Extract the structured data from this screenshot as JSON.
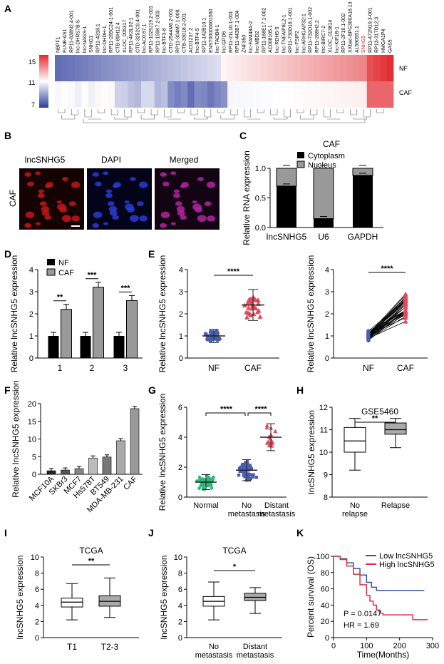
{
  "panels": {
    "A": "A",
    "B": "B",
    "C": "C",
    "D": "D",
    "E": "E",
    "F": "F",
    "G": "G",
    "H": "H",
    "I": "I",
    "J": "J",
    "K": "K"
  },
  "heatmap": {
    "genes": [
      "NBPF1",
      "FLNB-AS1",
      "RP11-838N2.4-001",
      "lnc-DHRS7B-5",
      "lnc-NAGS-1",
      "SNHG1",
      "RP11-4318.1",
      "lnc-DHDH-1",
      "RP11-285C24-1-001",
      "CTB-89H12.4",
      "XLOC_005317",
      "RP11-4K3L02-1",
      "CTD-3252C9.4-001",
      "lnc-AC0.67.1",
      "RP11-1029J19.2-001",
      "RP11-159K7.2-003",
      "lnc-BTF3-8",
      "CTD-2544M6.2-001",
      "RP11-304M7.1-008",
      "CTB-33018.2-001",
      "AC01237.2",
      "lnc-BTF4-5",
      "RP11-142B10.1",
      "ENST00000601560",
      "lnc-TADB4-1",
      "lnc-GPD6",
      "RP11-21L10.1-001",
      "RP11-443B7.1-004",
      "ZNF350",
      "lnc-FAM48A-2",
      "lnc-MBD2",
      "RP11-168E17.1-002",
      "AC008105.1",
      "lnc-RDH5-5",
      "lnc-TNFAIP8L2-1",
      "RP11-730D18.1-001",
      "lnc-FSIP2",
      "lnc-ARHGAP32-1",
      "RP11-732O18.1-002",
      "RP11-288H2.2",
      "lnc-BIRC7-2",
      "XLOC_013814",
      "lnc-KIF1B-1",
      "RP11-2F16.1-002",
      "XXbac-BPG300A18.13",
      "AL590551.1",
      "SNHG5",
      "RP11-472N19.3-001",
      "RP13-317D12.3",
      "HMGA1P4",
      "GAS5"
    ],
    "highlight": "SNHG5",
    "rows": [
      "NF",
      "CAF"
    ],
    "scale_ticks": [
      "15",
      "11",
      "7"
    ]
  },
  "panel_b": {
    "channels": [
      "lncSNHG5",
      "DAPI",
      "Merged"
    ],
    "row_label": "CAF"
  },
  "chart_data": [
    {
      "panel": "C",
      "type": "bar",
      "title": "CAF",
      "categories": [
        "lncSNHG5",
        "U6",
        "GAPDH"
      ],
      "series": [
        {
          "name": "Cytoplasm",
          "values": [
            0.7,
            0.15,
            0.88
          ]
        },
        {
          "name": "Nucleus",
          "values": [
            0.3,
            0.85,
            0.12
          ]
        }
      ],
      "ylabel": "Relative RNA expression",
      "ylim": [
        0,
        1.0
      ],
      "yticks": [
        "0.0",
        "0.5",
        "1.0"
      ]
    },
    {
      "panel": "D",
      "type": "bar",
      "categories": [
        "1",
        "2",
        "3"
      ],
      "series": [
        {
          "name": "NF",
          "values": [
            1.0,
            1.0,
            1.0
          ]
        },
        {
          "name": "CAF",
          "values": [
            2.2,
            3.2,
            2.6
          ]
        }
      ],
      "significance": [
        "**",
        "***",
        "***"
      ],
      "ylabel": "Relative lncSNHG5 expression",
      "ylim": [
        0,
        4
      ],
      "yticks": [
        "0",
        "1",
        "2",
        "3",
        "4"
      ]
    },
    {
      "panel": "E-left",
      "type": "scatter",
      "categories": [
        "NF",
        "CAF"
      ],
      "means": [
        1.0,
        2.4
      ],
      "sd": [
        0.3,
        0.7
      ],
      "significance": "****",
      "ylabel": "Relative lncSNHG5 expression",
      "ylim": [
        0,
        4
      ],
      "yticks": [
        "0",
        "1",
        "2",
        "3",
        "4"
      ]
    },
    {
      "panel": "E-right",
      "type": "line",
      "categories": [
        "NF",
        "CAF"
      ],
      "significance": "****",
      "ylabel": "Relative lncSNHG5 expression",
      "ylim": [
        0,
        4
      ],
      "yticks": [
        "0",
        "1",
        "2",
        "3",
        "4"
      ]
    },
    {
      "panel": "F",
      "type": "bar",
      "categories": [
        "MCF10A",
        "SKBr3",
        "MCF7",
        "Hs578T",
        "BT549",
        "MDA-MB-231",
        "CAF"
      ],
      "values": [
        1.0,
        1.2,
        1.6,
        4.6,
        4.9,
        9.5,
        18.6
      ],
      "ylabel": "Relative lncSNHG5 expression",
      "ylim": [
        0,
        20
      ],
      "yticks": [
        "0",
        "5",
        "10",
        "15",
        "20"
      ]
    },
    {
      "panel": "G",
      "type": "scatter",
      "categories": [
        "Normal",
        "No metastasis",
        "Distant metastasis"
      ],
      "means": [
        1.0,
        1.8,
        4.0
      ],
      "sd": [
        0.5,
        0.7,
        0.9
      ],
      "significance": [
        "****",
        "****"
      ],
      "ylabel": "Relative lncSNHG5 expression",
      "ylim": [
        0,
        6
      ],
      "yticks": [
        "0",
        "2",
        "4",
        "6"
      ]
    },
    {
      "panel": "H",
      "type": "box",
      "title": "GSE5460",
      "categories": [
        "No relapse",
        "Relapse"
      ],
      "boxes": [
        {
          "min": 9.2,
          "q1": 10.0,
          "median": 10.5,
          "q3": 11.1,
          "max": 11.5
        },
        {
          "min": 10.2,
          "q1": 10.8,
          "median": 11.0,
          "q3": 11.3,
          "max": 11.5
        }
      ],
      "significance": "**",
      "ylabel": "lncSNHG5 expression",
      "ylim": [
        8,
        12
      ],
      "yticks": [
        "8",
        "9",
        "10",
        "11",
        "12"
      ]
    },
    {
      "panel": "I",
      "type": "box",
      "title": "TCGA",
      "categories": [
        "T1",
        "T2-3"
      ],
      "boxes": [
        {
          "min": 2.2,
          "q1": 3.8,
          "median": 4.4,
          "q3": 4.9,
          "max": 6.7
        },
        {
          "min": 2.5,
          "q1": 3.9,
          "median": 4.5,
          "q3": 5.2,
          "max": 7.4
        }
      ],
      "significance": "**",
      "ylabel": "lncSNHG5 expression",
      "ylim": [
        0,
        10
      ],
      "yticks": [
        "0",
        "2",
        "4",
        "6",
        "8",
        "10"
      ]
    },
    {
      "panel": "J",
      "type": "box",
      "title": "TCGA",
      "categories": [
        "No metastasis",
        "Distant metastasis"
      ],
      "boxes": [
        {
          "min": 2.2,
          "q1": 3.9,
          "median": 4.5,
          "q3": 5.1,
          "max": 6.9
        },
        {
          "min": 3.0,
          "q1": 4.6,
          "median": 5.0,
          "q3": 5.5,
          "max": 6.2
        }
      ],
      "significance": "*",
      "ylabel": "lncSNHG5 expression",
      "ylim": [
        0,
        10
      ],
      "yticks": [
        "0",
        "2",
        "4",
        "6",
        "8",
        "10"
      ]
    },
    {
      "panel": "K",
      "type": "line",
      "series": [
        {
          "name": "Low lncSNHG5",
          "color": "#3355aa",
          "x": [
            0,
            20,
            40,
            60,
            80,
            100,
            115,
            130,
            150,
            200,
            250,
            275
          ],
          "y": [
            100,
            97,
            92,
            85,
            77,
            68,
            62,
            58,
            58,
            58,
            58,
            58
          ]
        },
        {
          "name": "High lncSNHG5",
          "color": "#dd3344",
          "x": [
            0,
            20,
            40,
            60,
            80,
            100,
            110,
            120,
            130,
            140,
            150,
            200,
            225,
            240,
            260,
            285
          ],
          "y": [
            100,
            96,
            88,
            78,
            65,
            52,
            45,
            40,
            34,
            30,
            28,
            28,
            28,
            22,
            22,
            22
          ]
        }
      ],
      "annotations": [
        "P = 0.0147",
        "HR = 1.69"
      ],
      "xlabel": "Time(Months)",
      "ylabel": "Percent survival (OS)",
      "xlim": [
        0,
        300
      ],
      "ylim": [
        0,
        100
      ],
      "xticks": [
        "0",
        "100",
        "200",
        "300"
      ],
      "yticks": [
        "0",
        "20",
        "40",
        "60",
        "80",
        "100"
      ]
    }
  ]
}
